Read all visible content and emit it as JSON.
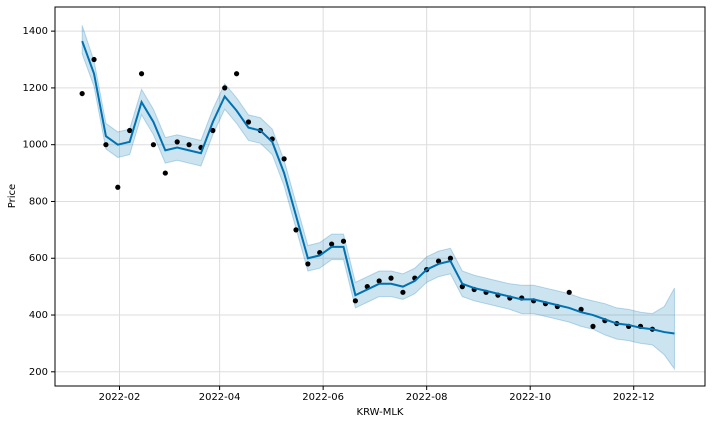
{
  "chart_data": {
    "type": "forecast",
    "xlabel": "KRW-MLK",
    "ylabel": "Price",
    "x": [
      "2022-01-10",
      "2022-01-17",
      "2022-01-24",
      "2022-01-31",
      "2022-02-07",
      "2022-02-14",
      "2022-02-21",
      "2022-02-28",
      "2022-03-07",
      "2022-03-14",
      "2022-03-21",
      "2022-03-28",
      "2022-04-04",
      "2022-04-11",
      "2022-04-18",
      "2022-04-25",
      "2022-05-02",
      "2022-05-09",
      "2022-05-16",
      "2022-05-23",
      "2022-05-30",
      "2022-06-06",
      "2022-06-13",
      "2022-06-20",
      "2022-06-27",
      "2022-07-04",
      "2022-07-11",
      "2022-07-18",
      "2022-07-25",
      "2022-08-01",
      "2022-08-08",
      "2022-08-15",
      "2022-08-22",
      "2022-08-29",
      "2022-09-05",
      "2022-09-12",
      "2022-09-19",
      "2022-09-26",
      "2022-10-03",
      "2022-10-10",
      "2022-10-17",
      "2022-10-24",
      "2022-10-31",
      "2022-11-07",
      "2022-11-14",
      "2022-11-21",
      "2022-11-28",
      "2022-12-05",
      "2022-12-12",
      "2022-12-19",
      "2022-12-25"
    ],
    "series": [
      {
        "name": "yhat",
        "color": "#0072B2",
        "values": [
          1365,
          1250,
          1030,
          1000,
          1010,
          1150,
          1080,
          980,
          990,
          980,
          970,
          1080,
          1170,
          1120,
          1060,
          1050,
          1010,
          900,
          750,
          600,
          610,
          640,
          640,
          470,
          490,
          510,
          510,
          500,
          520,
          560,
          580,
          590,
          510,
          495,
          485,
          475,
          465,
          455,
          455,
          445,
          435,
          425,
          410,
          400,
          385,
          370,
          365,
          355,
          350,
          340,
          335
        ]
      },
      {
        "name": "yhat_lower",
        "color": "#0072B2",
        "values": [
          1320,
          1205,
          985,
          955,
          965,
          1105,
          1035,
          935,
          945,
          935,
          925,
          1035,
          1125,
          1075,
          1015,
          1005,
          965,
          855,
          705,
          555,
          565,
          595,
          595,
          425,
          445,
          465,
          465,
          455,
          475,
          515,
          535,
          545,
          465,
          450,
          440,
          430,
          420,
          405,
          405,
          395,
          385,
          375,
          360,
          350,
          330,
          315,
          310,
          300,
          295,
          260,
          210
        ]
      },
      {
        "name": "yhat_upper",
        "color": "#0072B2",
        "values": [
          1420,
          1295,
          1075,
          1045,
          1055,
          1195,
          1125,
          1025,
          1035,
          1025,
          1015,
          1125,
          1215,
          1165,
          1105,
          1095,
          1055,
          945,
          795,
          645,
          655,
          685,
          685,
          515,
          535,
          555,
          555,
          545,
          565,
          605,
          625,
          635,
          555,
          540,
          530,
          520,
          510,
          505,
          505,
          495,
          485,
          475,
          460,
          450,
          440,
          425,
          420,
          410,
          405,
          430,
          495
        ]
      },
      {
        "name": "y",
        "color": "#000000",
        "values": [
          1180,
          1300,
          1000,
          850,
          1050,
          1250,
          1000,
          900,
          1010,
          1000,
          990,
          1050,
          1200,
          1250,
          1080,
          1050,
          1020,
          950,
          700,
          580,
          620,
          650,
          660,
          450,
          500,
          520,
          530,
          480,
          530,
          560,
          590,
          600,
          500,
          490,
          480,
          470,
          460,
          460,
          450,
          440,
          430,
          480,
          420,
          360,
          380,
          370,
          360,
          360,
          350,
          null,
          null
        ]
      }
    ],
    "xlim": [
      "2021-12-25",
      "2023-01-12"
    ],
    "xticks": [
      {
        "value": "2022-02-01",
        "label": "2022-02"
      },
      {
        "value": "2022-04-01",
        "label": "2022-04"
      },
      {
        "value": "2022-06-01",
        "label": "2022-06"
      },
      {
        "value": "2022-08-01",
        "label": "2022-08"
      },
      {
        "value": "2022-10-01",
        "label": "2022-10"
      },
      {
        "value": "2022-12-01",
        "label": "2022-12"
      }
    ],
    "ylim": [
      150,
      1485
    ],
    "yticks": [
      200,
      400,
      600,
      800,
      1000,
      1200,
      1400
    ],
    "grid": true
  }
}
